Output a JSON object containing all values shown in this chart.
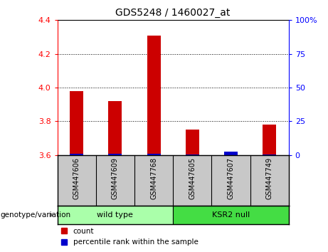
{
  "title": "GDS5248 / 1460027_at",
  "samples": [
    "GSM447606",
    "GSM447609",
    "GSM447768",
    "GSM447605",
    "GSM447607",
    "GSM447749"
  ],
  "red_values": [
    3.98,
    3.92,
    4.31,
    3.75,
    3.605,
    3.78
  ],
  "blue_values": [
    0.8,
    0.8,
    1.0,
    0.5,
    2.5,
    0.5
  ],
  "ylim_left": [
    3.6,
    4.4
  ],
  "ylim_right": [
    0,
    100
  ],
  "yticks_left": [
    3.6,
    3.8,
    4.0,
    4.2,
    4.4
  ],
  "yticks_right": [
    0,
    25,
    50,
    75,
    100
  ],
  "ytick_labels_right": [
    "0",
    "25",
    "50",
    "75",
    "100%"
  ],
  "groups": [
    {
      "label": "wild type",
      "indices": [
        0,
        1,
        2
      ],
      "color": "#aaffaa"
    },
    {
      "label": "KSR2 null",
      "indices": [
        3,
        4,
        5
      ],
      "color": "#44dd44"
    }
  ],
  "red_color": "#CC0000",
  "blue_color": "#0000CC",
  "sample_bg_color": "#C8C8C8",
  "baseline": 3.6,
  "legend_red_label": "count",
  "legend_blue_label": "percentile rank within the sample",
  "genotype_label": "genotype/variation"
}
